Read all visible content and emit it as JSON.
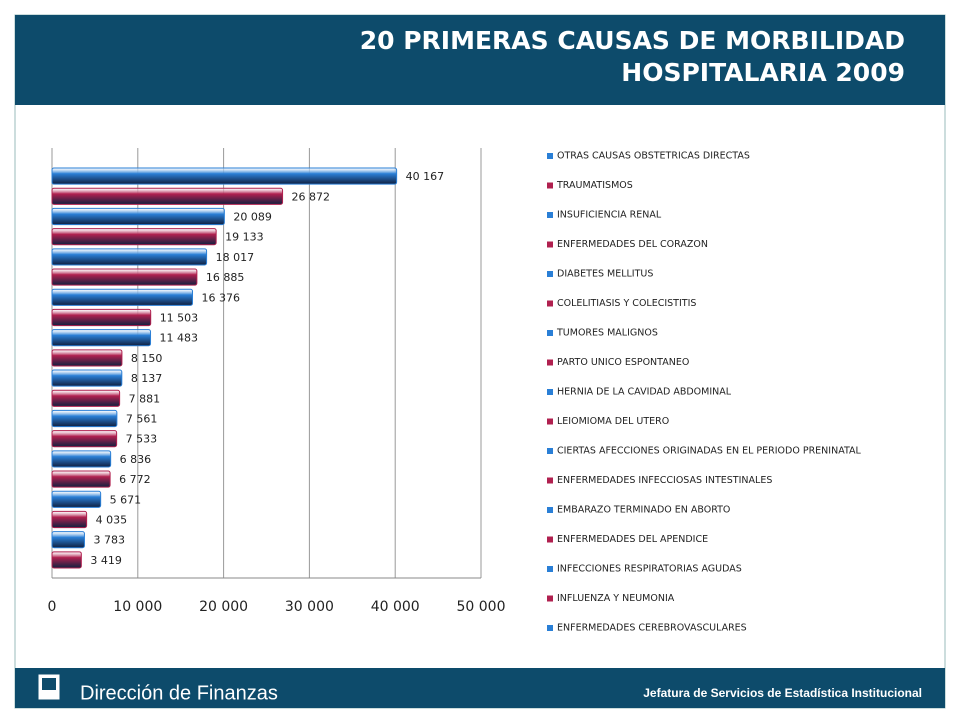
{
  "header": {
    "title_lines": [
      "20 PRIMERAS CAUSAS DE MORBILIDAD",
      "HOSPITALARIA 2009"
    ]
  },
  "chart_data": {
    "type": "bar",
    "orientation": "horizontal",
    "categories": [
      "OTRAS CAUSAS OBSTETRICAS DIRECTAS",
      "TRAUMATISMOS",
      "INSUFICIENCIA RENAL",
      "ENFERMEDADES DEL CORAZON",
      "DIABETES MELLITUS",
      "COLELITIASIS Y COLECISTITIS",
      "TUMORES MALIGNOS",
      "PARTO UNICO ESPONTANEO",
      "HERNIA DE LA CAVIDAD ABDOMINAL",
      "LEIOMIOMA DEL UTERO",
      "CIERTAS AFECCIONES ORIGINADAS EN EL PERIODO PRENINATAL",
      "ENFERMEDADES INFECCIOSAS INTESTINALES",
      "EMBARAZO TERMINADO EN ABORTO",
      "ENFERMEDADES DEL APENDICE",
      "INFECCIONES RESPIRATORIAS AGUDAS",
      "INFLUENZA Y NEUMONIA",
      "ENFERMEDADES CEREBROVASCULARES",
      null,
      null,
      null
    ],
    "values": [
      40167,
      26872,
      20089,
      19133,
      18017,
      16885,
      16376,
      11503,
      11483,
      8150,
      8137,
      7881,
      7561,
      7533,
      6836,
      6772,
      5671,
      4035,
      3783,
      3419
    ],
    "value_labels": [
      "40 167",
      "26 872",
      "20 089",
      "19 133",
      "18 017",
      "16 885",
      "16 376",
      "11 503",
      "11 483",
      "8 150",
      "8 137",
      "7 881",
      "7 561",
      "7 533",
      "6 836",
      "6 772",
      "5 671",
      "4 035",
      "3 783",
      "3 419"
    ],
    "colors": [
      "#2a7fd6",
      "#b0204f"
    ],
    "xlim": [
      0,
      50000
    ],
    "xticks": [
      0,
      {
        "value": 10000,
        "label": "10 000"
      },
      {
        "value": 20000,
        "label": "20 000"
      },
      {
        "value": 30000,
        "label": "30 000"
      },
      {
        "value": 40000,
        "label": "40 000"
      },
      {
        "value": 50000,
        "label": "50 000"
      }
    ],
    "grid": true,
    "legend": "right"
  },
  "footer": {
    "left": "Dirección de Finanzas",
    "right": "Jefatura de Servicios de Estadística Institucional"
  }
}
